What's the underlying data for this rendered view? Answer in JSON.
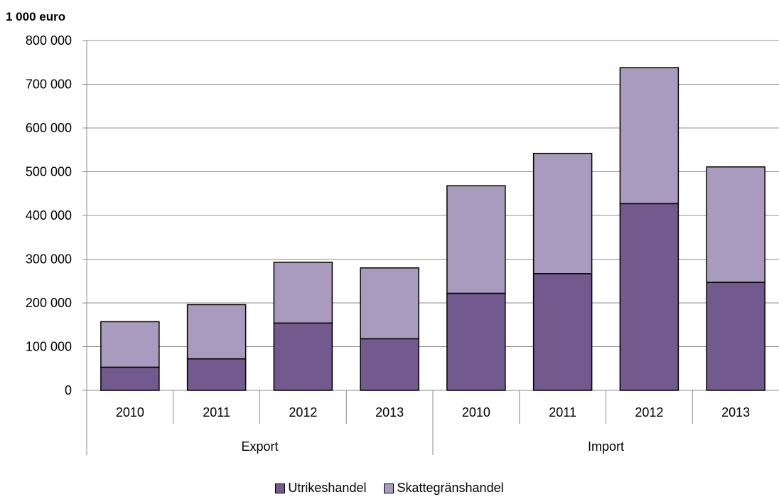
{
  "chart_data": {
    "type": "bar",
    "stacked": true,
    "ylabel": "1 000 euro",
    "ylim": [
      0,
      800000
    ],
    "yticks": [
      0,
      100000,
      200000,
      300000,
      400000,
      500000,
      600000,
      700000,
      800000
    ],
    "ytick_labels": [
      "0",
      "100 000",
      "200 000",
      "300 000",
      "400 000",
      "500 000",
      "600 000",
      "700 000",
      "800 000"
    ],
    "grid": true,
    "legend_position": "bottom",
    "groups": [
      {
        "label": "Export",
        "categories": [
          "2010",
          "2011",
          "2012",
          "2013"
        ]
      },
      {
        "label": "Import",
        "categories": [
          "2010",
          "2011",
          "2012",
          "2013"
        ]
      }
    ],
    "categories": [
      "2010",
      "2011",
      "2012",
      "2013",
      "2010",
      "2011",
      "2012",
      "2013"
    ],
    "series": [
      {
        "name": "Utrikeshandel",
        "color": "#725a8f",
        "values": [
          53000,
          72000,
          154000,
          118000,
          222000,
          267000,
          427000,
          247000
        ]
      },
      {
        "name": "Skattegränshandel",
        "color": "#a99bbd",
        "values": [
          104000,
          124000,
          139000,
          162000,
          246000,
          275000,
          311000,
          264000
        ]
      }
    ]
  }
}
